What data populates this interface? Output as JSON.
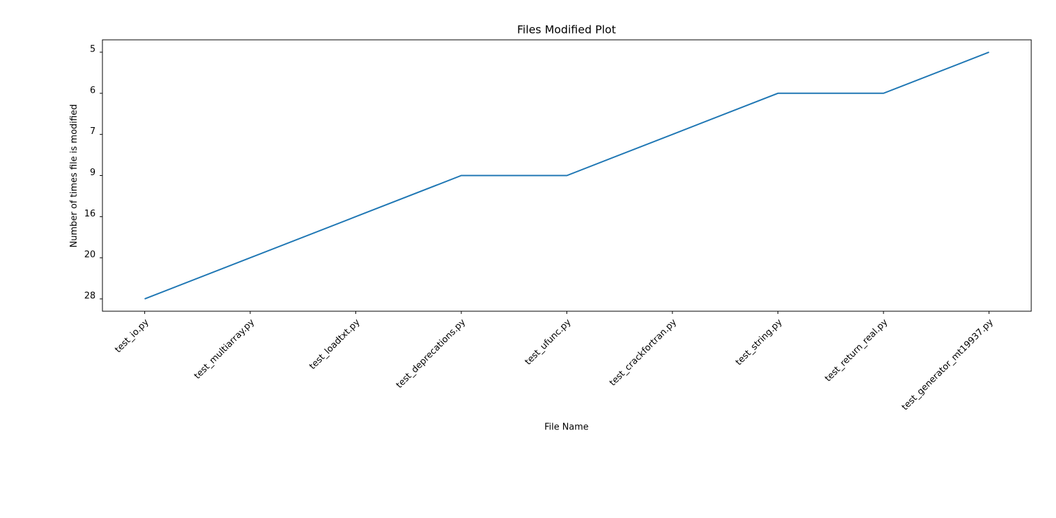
{
  "chart_data": {
    "type": "line",
    "title": "Files Modified Plot",
    "x_label": "File Name",
    "y_label": "Number of times file is modified",
    "categories": [
      "test_io.py",
      "test_multiarray.py",
      "test_loadtxt.py",
      "test_deprecations.py",
      "test_ufunc.py",
      "test_crackfortran.py",
      "test_string.py",
      "test_return_real.py",
      "test_generator_mt19937.py"
    ],
    "values": [
      28,
      20,
      16,
      9,
      9,
      7,
      6,
      6,
      5
    ],
    "yticks": [
      28,
      20,
      16,
      9,
      7,
      6,
      5
    ],
    "y_scale": "categorical",
    "color": "#1f77b4"
  }
}
